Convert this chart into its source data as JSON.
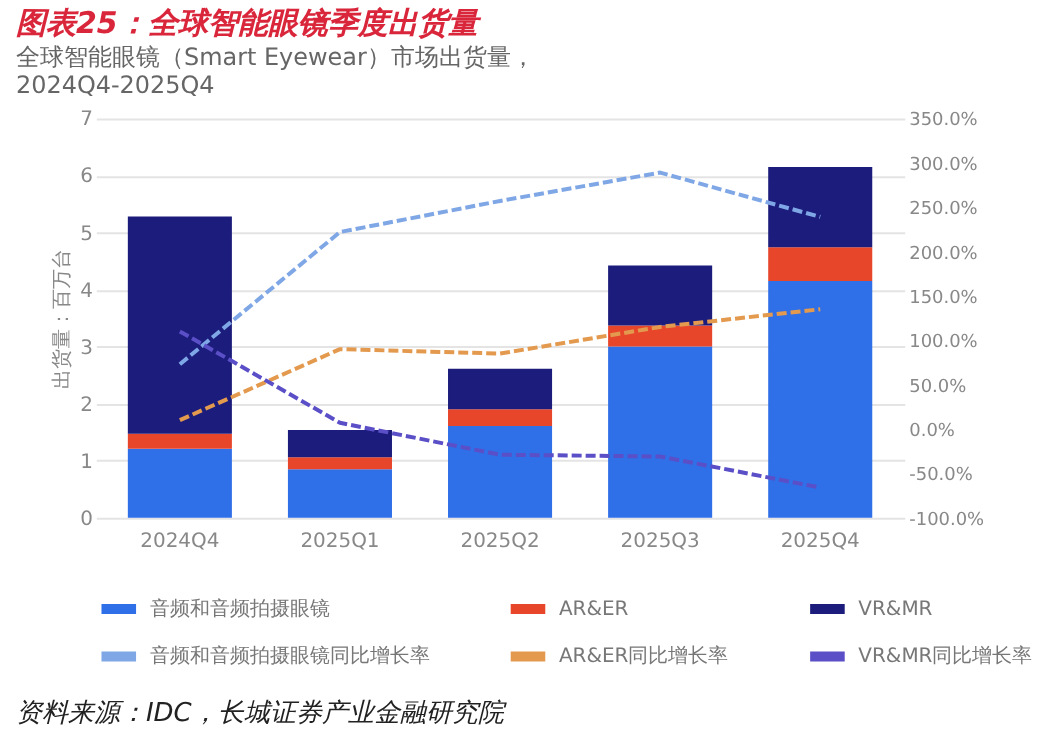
{
  "chart_data": {
    "type": "bar",
    "stacked": true,
    "title": "图表25：全球智能眼镜季度出货量",
    "subtitle": "全球智能眼镜（Smart Eyewear）市场出货量，\n2024Q4-2025Q4",
    "ylabel": "出货量：百万台",
    "categories": [
      "2024Q4",
      "2025Q1",
      "2025Q2",
      "2025Q3",
      "2025Q4"
    ],
    "series": [
      {
        "name": "音频和音频拍摄眼镜",
        "color": "#2f6fe8",
        "values": [
          1.21,
          0.85,
          1.61,
          3.0,
          4.15
        ]
      },
      {
        "name": "AR&ER",
        "color": "#e8462a",
        "values": [
          0.26,
          0.21,
          0.29,
          0.37,
          0.59
        ]
      },
      {
        "name": "VR&MR",
        "color": "#1c1c7c",
        "values": [
          3.81,
          0.48,
          0.71,
          1.05,
          1.41
        ]
      },
      {
        "name": "音频和音频拍摄眼镜同比增长率",
        "type": "line",
        "axis": "y2",
        "line_style": "dashed",
        "color": "#7fa7e6",
        "values": [
          73,
          222,
          257,
          289,
          239
        ]
      },
      {
        "name": "AR&ER同比增长率",
        "type": "line",
        "axis": "y2",
        "line_style": "dashed",
        "color": "#e39a4f",
        "values": [
          10,
          90,
          85,
          115,
          135
        ]
      },
      {
        "name": "VR&MR同比增长率",
        "type": "line",
        "axis": "y2",
        "line_style": "dashed",
        "color": "#5b4fc8",
        "values": [
          110,
          7,
          -29,
          -31,
          -66
        ]
      }
    ],
    "ylim": [
      0,
      7
    ],
    "yticks": [
      0,
      1,
      2,
      3,
      4,
      5,
      6,
      7
    ],
    "y2lim": [
      -100,
      350
    ],
    "y2ticks": [
      {
        "value": -100,
        "label": "-100.0%"
      },
      {
        "value": -50,
        "label": "-50.0%"
      },
      {
        "value": 0,
        "label": "0.0%"
      },
      {
        "value": 50,
        "label": "50.0%"
      },
      {
        "value": 100,
        "label": "100.0%"
      },
      {
        "value": 150,
        "label": "150.0%"
      },
      {
        "value": 200,
        "label": "200.0%"
      },
      {
        "value": 250,
        "label": "250.0%"
      },
      {
        "value": 300,
        "label": "300.0%"
      },
      {
        "value": 350,
        "label": "350.0%"
      }
    ],
    "grid": "y",
    "legend": "bottom",
    "annotations": [
      "资料来源：IDC，长城证券产业金融研究院"
    ]
  }
}
